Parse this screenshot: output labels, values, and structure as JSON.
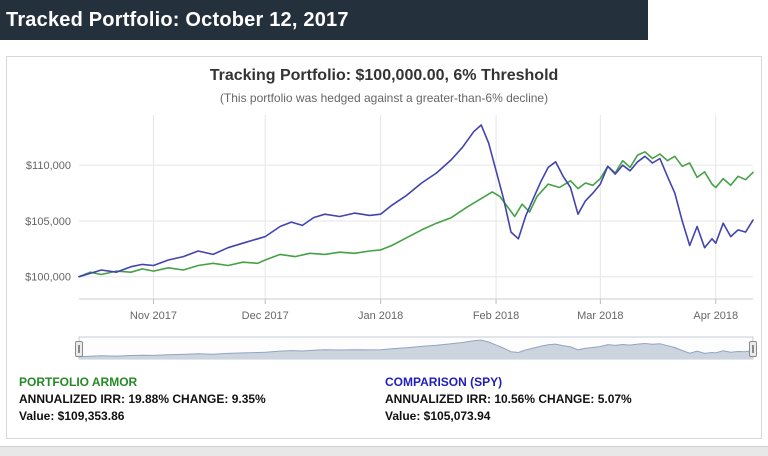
{
  "header": {
    "title": "Tracked Portfolio: October 12, 2017"
  },
  "chart": {
    "title": "Tracking Portfolio: $100,000.00, 6% Threshold",
    "subtitle": "(This portfolio was hedged against a greater-than-6% decline)"
  },
  "chart_data": {
    "type": "line",
    "title": "Tracking Portfolio: $100,000.00, 6% Threshold",
    "subtitle": "(This portfolio was hedged against a greater-than-6% decline)",
    "xlabel": "",
    "ylabel": "",
    "x_unit": "days since Oct 12, 2017",
    "xlim": [
      0,
      181
    ],
    "ylim": [
      98000,
      114500
    ],
    "grid": true,
    "legend_position": "bottom",
    "y_ticks": [
      {
        "value": 100000,
        "label": "$100,000"
      },
      {
        "value": 105000,
        "label": "$105,000"
      },
      {
        "value": 110000,
        "label": "$110,000"
      }
    ],
    "x_ticks": [
      {
        "x": 20,
        "label": "Nov 2017"
      },
      {
        "x": 50,
        "label": "Dec 2017"
      },
      {
        "x": 81,
        "label": "Jan 2018"
      },
      {
        "x": 112,
        "label": "Feb 2018"
      },
      {
        "x": 140,
        "label": "Mar 2018"
      },
      {
        "x": 171,
        "label": "Apr 2018"
      }
    ],
    "series": [
      {
        "name": "Portfolio Armor",
        "color": "#45a145",
        "points": [
          [
            0,
            100000
          ],
          [
            3,
            100400
          ],
          [
            6,
            100200
          ],
          [
            10,
            100500
          ],
          [
            14,
            100400
          ],
          [
            17,
            100700
          ],
          [
            20,
            100500
          ],
          [
            24,
            100800
          ],
          [
            28,
            100600
          ],
          [
            32,
            101000
          ],
          [
            36,
            101200
          ],
          [
            40,
            101000
          ],
          [
            44,
            101300
          ],
          [
            48,
            101200
          ],
          [
            50,
            101500
          ],
          [
            54,
            102000
          ],
          [
            58,
            101800
          ],
          [
            62,
            102100
          ],
          [
            66,
            102000
          ],
          [
            70,
            102200
          ],
          [
            74,
            102100
          ],
          [
            78,
            102300
          ],
          [
            81,
            102400
          ],
          [
            84,
            102800
          ],
          [
            88,
            103500
          ],
          [
            92,
            104200
          ],
          [
            96,
            104800
          ],
          [
            100,
            105300
          ],
          [
            104,
            106200
          ],
          [
            108,
            107000
          ],
          [
            111,
            107600
          ],
          [
            113,
            107200
          ],
          [
            115,
            106300
          ],
          [
            117,
            105400
          ],
          [
            119,
            106500
          ],
          [
            121,
            105800
          ],
          [
            123,
            107200
          ],
          [
            126,
            108300
          ],
          [
            129,
            108000
          ],
          [
            132,
            108600
          ],
          [
            134,
            107900
          ],
          [
            136,
            108400
          ],
          [
            138,
            108200
          ],
          [
            140,
            108800
          ],
          [
            142,
            109900
          ],
          [
            144,
            109300
          ],
          [
            146,
            110400
          ],
          [
            148,
            109800
          ],
          [
            150,
            110900
          ],
          [
            152,
            111200
          ],
          [
            154,
            110600
          ],
          [
            156,
            111000
          ],
          [
            158,
            110400
          ],
          [
            160,
            110800
          ],
          [
            162,
            109900
          ],
          [
            164,
            110200
          ],
          [
            166,
            108900
          ],
          [
            168,
            109400
          ],
          [
            170,
            108300
          ],
          [
            171,
            108000
          ],
          [
            173,
            108800
          ],
          [
            175,
            108200
          ],
          [
            177,
            109000
          ],
          [
            179,
            108700
          ],
          [
            181,
            109354
          ]
        ]
      },
      {
        "name": "Comparison (SPY)",
        "color": "#4343b0",
        "points": [
          [
            0,
            100000
          ],
          [
            3,
            100300
          ],
          [
            6,
            100600
          ],
          [
            10,
            100400
          ],
          [
            14,
            100900
          ],
          [
            17,
            101100
          ],
          [
            20,
            101000
          ],
          [
            24,
            101500
          ],
          [
            28,
            101800
          ],
          [
            32,
            102300
          ],
          [
            36,
            102000
          ],
          [
            40,
            102600
          ],
          [
            44,
            103000
          ],
          [
            48,
            103400
          ],
          [
            50,
            103600
          ],
          [
            54,
            104500
          ],
          [
            57,
            104900
          ],
          [
            60,
            104600
          ],
          [
            63,
            105300
          ],
          [
            66,
            105600
          ],
          [
            70,
            105400
          ],
          [
            74,
            105700
          ],
          [
            78,
            105500
          ],
          [
            81,
            105600
          ],
          [
            84,
            106400
          ],
          [
            88,
            107300
          ],
          [
            92,
            108400
          ],
          [
            96,
            109300
          ],
          [
            100,
            110500
          ],
          [
            103,
            111600
          ],
          [
            106,
            113000
          ],
          [
            108,
            113600
          ],
          [
            110,
            112000
          ],
          [
            112,
            109500
          ],
          [
            114,
            107000
          ],
          [
            116,
            104000
          ],
          [
            118,
            103400
          ],
          [
            120,
            105500
          ],
          [
            122,
            107000
          ],
          [
            124,
            108500
          ],
          [
            126,
            109800
          ],
          [
            128,
            110300
          ],
          [
            130,
            109000
          ],
          [
            132,
            108000
          ],
          [
            134,
            105600
          ],
          [
            136,
            106800
          ],
          [
            138,
            107500
          ],
          [
            140,
            108300
          ],
          [
            142,
            109900
          ],
          [
            144,
            109200
          ],
          [
            146,
            110000
          ],
          [
            148,
            109500
          ],
          [
            150,
            110300
          ],
          [
            152,
            110800
          ],
          [
            154,
            110200
          ],
          [
            156,
            110600
          ],
          [
            158,
            109000
          ],
          [
            160,
            107500
          ],
          [
            162,
            105000
          ],
          [
            164,
            102800
          ],
          [
            166,
            104500
          ],
          [
            168,
            102600
          ],
          [
            170,
            103400
          ],
          [
            171,
            103000
          ],
          [
            173,
            104800
          ],
          [
            175,
            103600
          ],
          [
            177,
            104200
          ],
          [
            179,
            104000
          ],
          [
            181,
            105074
          ]
        ]
      }
    ]
  },
  "legend": {
    "armor": {
      "name": "PORTFOLIO ARMOR",
      "stats": "ANNUALIZED IRR: 19.88% CHANGE: 9.35%",
      "value": "Value: $109,353.86",
      "color": "#258925"
    },
    "spy": {
      "name": "COMPARISON (SPY)",
      "stats": "ANNUALIZED IRR: 10.56% CHANGE: 5.07%",
      "value": "Value: $105,073.94",
      "color": "#2020b8"
    }
  }
}
